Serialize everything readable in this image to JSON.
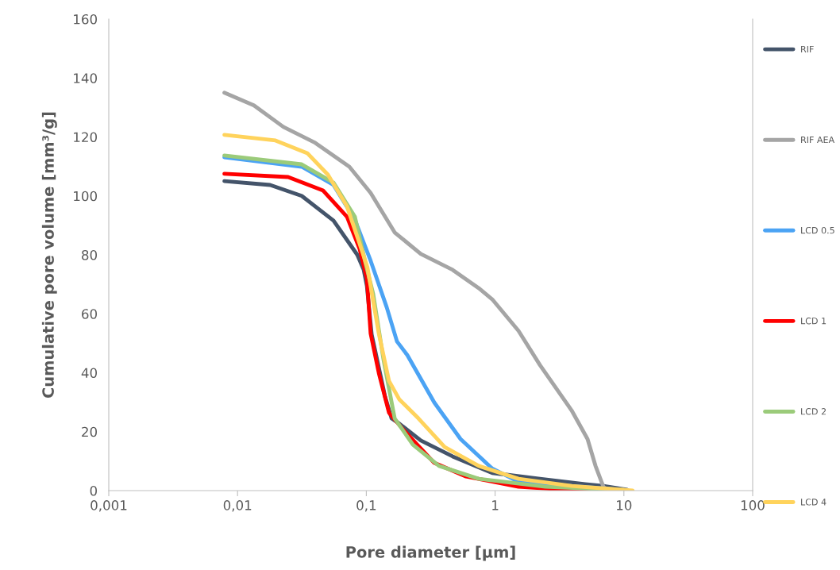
{
  "chart_data": {
    "type": "line",
    "xlabel": "Pore diameter [µm]",
    "ylabel": "Cumulative pore volume [mm³/g]",
    "log": "x",
    "xlim": [
      0.001,
      100
    ],
    "xticks": [
      {
        "value": 0.001,
        "label": "0,001"
      },
      {
        "value": 0.01,
        "label": "0,01"
      },
      {
        "value": 0.1,
        "label": "0,1"
      },
      1,
      10,
      100
    ],
    "ylim": [
      0,
      160
    ],
    "yticks": [
      0,
      20,
      40,
      60,
      80,
      100,
      120,
      140,
      160
    ],
    "grid": false,
    "legend": "right",
    "marker": "none",
    "line_style": "solid",
    "series": [
      {
        "name": "RIF",
        "color": "#44546a",
        "x": [
          0.0079,
          0.0179,
          0.0315,
          0.0556,
          0.0851,
          0.0953,
          0.101,
          0.11,
          0.14,
          0.157,
          0.178,
          0.265,
          0.468,
          0.95,
          2.23,
          5.0,
          6.93,
          10.6
        ],
        "values": [
          105,
          103.7,
          100,
          91.6,
          80,
          75,
          69.5,
          53,
          31.8,
          24.5,
          22.9,
          17,
          11.6,
          6,
          4,
          2.2,
          1.6,
          0.3
        ]
      },
      {
        "name": "RIF AEA",
        "color": "#a5a5a5",
        "x": [
          0.0079,
          0.0134,
          0.0227,
          0.0401,
          0.0738,
          0.108,
          0.166,
          0.265,
          0.468,
          0.746,
          0.95,
          1.52,
          2.23,
          3.93,
          5.22,
          6.02,
          6.93,
          7.44,
          9.9
        ],
        "values": [
          135,
          130.7,
          123.4,
          118,
          109.9,
          101,
          87.6,
          80.3,
          74.9,
          68.7,
          64.9,
          54.2,
          42.6,
          27.2,
          17.5,
          8.4,
          1.3,
          0.3,
          0.3
        ]
      },
      {
        "name": "LCD 0.5",
        "color": "#4ba3f4",
        "x": [
          0.0079,
          0.0315,
          0.0556,
          0.0815,
          0.108,
          0.144,
          0.173,
          0.208,
          0.337,
          0.539,
          0.95,
          1.52,
          9.2
        ],
        "values": [
          113.1,
          109.9,
          103.7,
          91.9,
          78,
          62.2,
          50.6,
          46,
          29.9,
          17.5,
          7.5,
          3,
          0.3
        ]
      },
      {
        "name": "LCD 1",
        "color": "#ff0000",
        "x": [
          0.0079,
          0.0247,
          0.0462,
          0.0708,
          0.0887,
          0.101,
          0.108,
          0.125,
          0.15,
          0.191,
          0.337,
          0.595,
          1.52,
          3.93,
          8.0
        ],
        "values": [
          107.5,
          106.4,
          101.8,
          92.9,
          82,
          72,
          53.3,
          39.9,
          26.4,
          21,
          9.4,
          4.8,
          1.3,
          0.2,
          0
        ]
      },
      {
        "name": "LCD 2",
        "color": "#9bcb7a",
        "x": [
          0.0079,
          0.0315,
          0.0556,
          0.0815,
          0.098,
          0.113,
          0.136,
          0.166,
          0.23,
          0.367,
          0.746,
          2.46,
          9.9
        ],
        "values": [
          113.7,
          110.7,
          104.5,
          92.9,
          77.6,
          66.8,
          44.4,
          24.5,
          15.6,
          8.4,
          4,
          1.3,
          0.2
        ]
      },
      {
        "name": "LCD 4",
        "color": "#ffd35c",
        "x": [
          0.0079,
          0.0197,
          0.0348,
          0.0503,
          0.0708,
          0.0887,
          0.102,
          0.125,
          0.15,
          0.18,
          0.254,
          0.406,
          0.746,
          1.52,
          3.93,
          11.7
        ],
        "values": [
          120.7,
          118.8,
          114.5,
          107.2,
          96.4,
          83.8,
          75.7,
          53.3,
          37.2,
          31,
          24.5,
          14.8,
          8.4,
          4,
          1.6,
          0
        ]
      }
    ]
  }
}
